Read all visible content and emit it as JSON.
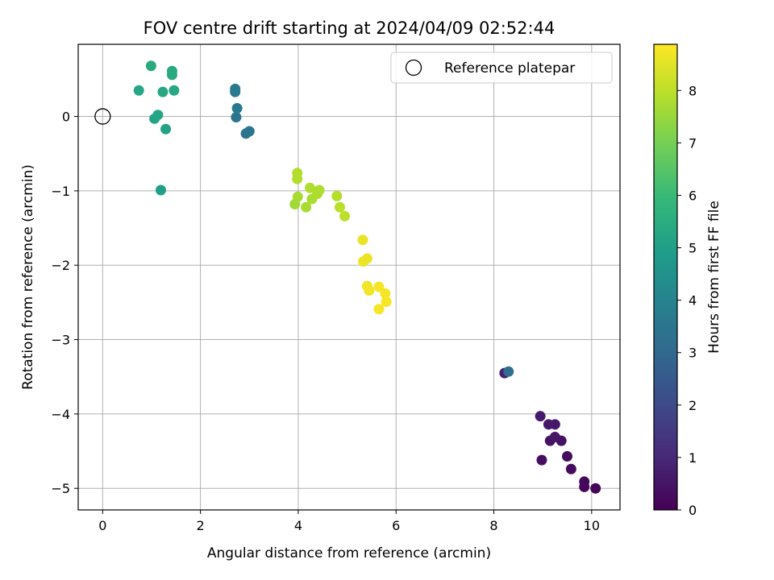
{
  "chart_data": {
    "type": "scatter",
    "title": "FOV centre drift starting at 2024/04/09 02:52:44",
    "xlabel": "Angular distance from reference (arcmin)",
    "ylabel": "Rotation from reference (arcmin)",
    "xlim": [
      -0.5,
      10.58
    ],
    "ylim": [
      -5.29,
      0.97
    ],
    "xticks": [
      0,
      2,
      4,
      6,
      8,
      10
    ],
    "yticks": [
      0,
      -1,
      -2,
      -3,
      -4,
      -5
    ],
    "xtick_labels": [
      "0",
      "2",
      "4",
      "6",
      "8",
      "10"
    ],
    "ytick_labels": [
      "0",
      "−1",
      "−2",
      "−3",
      "−4",
      "−5"
    ],
    "grid": true,
    "legend": {
      "position": "upper right",
      "entries": [
        "Reference platepar"
      ]
    },
    "reference_point": {
      "x": 0,
      "y": 0
    },
    "colorbar": {
      "label": "Hours from first FF file",
      "range": [
        0,
        8.88
      ],
      "ticks": [
        0,
        1,
        2,
        3,
        4,
        5,
        6,
        7,
        8
      ],
      "colormap": "viridis",
      "stops": [
        "#440154",
        "#482878",
        "#3e4989",
        "#31688e",
        "#26828e",
        "#1f9e89",
        "#35b779",
        "#6ece58",
        "#b5de2b",
        "#fde725"
      ]
    },
    "points": [
      {
        "x": 10.08,
        "y": -5.0,
        "h": 0.1
      },
      {
        "x": 9.85,
        "y": -4.98,
        "h": 0.15
      },
      {
        "x": 9.85,
        "y": -4.91,
        "h": 0.2
      },
      {
        "x": 9.58,
        "y": -4.74,
        "h": 0.25
      },
      {
        "x": 9.5,
        "y": -4.57,
        "h": 0.3
      },
      {
        "x": 8.98,
        "y": -4.62,
        "h": 0.35
      },
      {
        "x": 9.38,
        "y": -4.36,
        "h": 0.4
      },
      {
        "x": 9.15,
        "y": -4.36,
        "h": 0.45
      },
      {
        "x": 9.25,
        "y": -4.31,
        "h": 0.5
      },
      {
        "x": 9.25,
        "y": -4.14,
        "h": 0.55
      },
      {
        "x": 9.12,
        "y": -4.14,
        "h": 0.6
      },
      {
        "x": 8.95,
        "y": -4.03,
        "h": 0.65
      },
      {
        "x": 8.22,
        "y": -3.45,
        "h": 0.75
      },
      {
        "x": 8.3,
        "y": -3.43,
        "h": 3.2
      },
      {
        "x": 2.93,
        "y": -0.23,
        "h": 3.4
      },
      {
        "x": 3.0,
        "y": -0.2,
        "h": 3.45
      },
      {
        "x": 2.73,
        "y": -0.01,
        "h": 3.5
      },
      {
        "x": 2.75,
        "y": 0.11,
        "h": 3.55
      },
      {
        "x": 2.71,
        "y": 0.33,
        "h": 3.6
      },
      {
        "x": 2.71,
        "y": 0.37,
        "h": 3.65
      },
      {
        "x": 1.19,
        "y": -0.99,
        "h": 5.0
      },
      {
        "x": 1.29,
        "y": -0.17,
        "h": 5.1
      },
      {
        "x": 1.06,
        "y": -0.03,
        "h": 5.15
      },
      {
        "x": 1.13,
        "y": 0.02,
        "h": 5.2
      },
      {
        "x": 0.74,
        "y": 0.35,
        "h": 5.25
      },
      {
        "x": 1.23,
        "y": 0.33,
        "h": 5.3
      },
      {
        "x": 1.46,
        "y": 0.35,
        "h": 5.3
      },
      {
        "x": 1.42,
        "y": 0.56,
        "h": 5.35
      },
      {
        "x": 1.42,
        "y": 0.61,
        "h": 5.35
      },
      {
        "x": 0.99,
        "y": 0.68,
        "h": 5.4
      },
      {
        "x": 3.93,
        "y": -1.18,
        "h": 7.6
      },
      {
        "x": 4.16,
        "y": -1.22,
        "h": 7.7
      },
      {
        "x": 3.99,
        "y": -1.08,
        "h": 7.7
      },
      {
        "x": 4.28,
        "y": -1.11,
        "h": 7.75
      },
      {
        "x": 4.39,
        "y": -1.04,
        "h": 7.8
      },
      {
        "x": 4.43,
        "y": -0.99,
        "h": 7.8
      },
      {
        "x": 4.24,
        "y": -0.96,
        "h": 7.8
      },
      {
        "x": 3.98,
        "y": -0.84,
        "h": 7.85
      },
      {
        "x": 3.98,
        "y": -0.76,
        "h": 7.85
      },
      {
        "x": 4.79,
        "y": -1.07,
        "h": 7.9
      },
      {
        "x": 4.85,
        "y": -1.22,
        "h": 7.95
      },
      {
        "x": 4.95,
        "y": -1.34,
        "h": 8.0
      },
      {
        "x": 5.32,
        "y": -1.66,
        "h": 8.6
      },
      {
        "x": 5.33,
        "y": -1.95,
        "h": 8.65
      },
      {
        "x": 5.41,
        "y": -1.91,
        "h": 8.65
      },
      {
        "x": 5.41,
        "y": -2.28,
        "h": 8.7
      },
      {
        "x": 5.45,
        "y": -2.34,
        "h": 8.7
      },
      {
        "x": 5.65,
        "y": -2.29,
        "h": 8.75
      },
      {
        "x": 5.78,
        "y": -2.38,
        "h": 8.75
      },
      {
        "x": 5.8,
        "y": -2.49,
        "h": 8.8
      },
      {
        "x": 5.65,
        "y": -2.59,
        "h": 8.8
      }
    ]
  }
}
